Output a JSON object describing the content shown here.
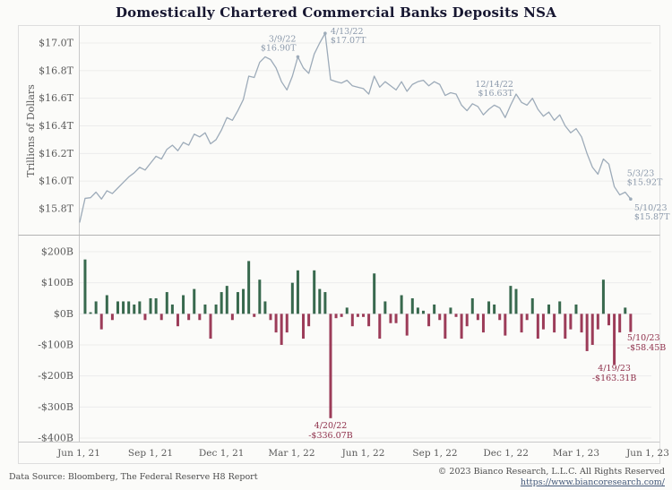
{
  "title": "Domestically Chartered Commercial Banks Deposits NSA",
  "footer": {
    "source": "Data Source: Bloomberg, The Federal Reserve H8 Report",
    "copyright": "© 2023 Bianco Research, L.L.C. All Rights Reserved",
    "url": "https://www.biancoresearch.com/"
  },
  "colors": {
    "line": "#9dabb9",
    "positive_bar": "#38694e",
    "negative_bar": "#9c3c59",
    "annotation_blue": "#8b99ab",
    "annotation_red": "#8e2f4a",
    "grid": "#ececec",
    "spine": "#c9c9c9",
    "divider": "#b3b3b3",
    "border": "#dedede",
    "tick_text": "#5a5a5a",
    "title_text": "#161630",
    "link": "#44597a"
  },
  "xaxis": {
    "ticks": [
      {
        "label": "Jun 1, 21",
        "date": "2021-06-01"
      },
      {
        "label": "Sep 1, 21",
        "date": "2021-09-01"
      },
      {
        "label": "Dec 1, 21",
        "date": "2021-12-01"
      },
      {
        "label": "Mar 1, 22",
        "date": "2022-03-01"
      },
      {
        "label": "Jun 1, 22",
        "date": "2022-06-01"
      },
      {
        "label": "Sep 1, 22",
        "date": "2022-09-01"
      },
      {
        "label": "Dec 1, 22",
        "date": "2022-12-01"
      },
      {
        "label": "Mar 1, 23",
        "date": "2023-03-01"
      },
      {
        "label": "Jun 1, 23",
        "date": "2023-06-01"
      }
    ],
    "range": [
      "2021-06-01",
      "2023-06-01"
    ]
  },
  "chart_data": [
    {
      "type": "line",
      "title": "Deposits level",
      "ylabel": "Trillions of Dollars",
      "ylim": [
        15.7,
        17.12
      ],
      "yticks": [
        {
          "label": "$17.0T",
          "v": 17.0
        },
        {
          "label": "$16.8T",
          "v": 16.8
        },
        {
          "label": "$16.6T",
          "v": 16.6
        },
        {
          "label": "$16.4T",
          "v": 16.4
        },
        {
          "label": "$16.2T",
          "v": 16.2
        },
        {
          "label": "$16.0T",
          "v": 16.0
        },
        {
          "label": "$15.8T",
          "v": 15.8
        }
      ],
      "x": [
        "2021-06-02",
        "2021-06-09",
        "2021-06-16",
        "2021-06-23",
        "2021-06-30",
        "2021-07-07",
        "2021-07-14",
        "2021-07-21",
        "2021-07-28",
        "2021-08-04",
        "2021-08-11",
        "2021-08-18",
        "2021-08-25",
        "2021-09-01",
        "2021-09-08",
        "2021-09-15",
        "2021-09-22",
        "2021-09-29",
        "2021-10-06",
        "2021-10-13",
        "2021-10-20",
        "2021-10-27",
        "2021-11-03",
        "2021-11-10",
        "2021-11-17",
        "2021-11-24",
        "2021-12-01",
        "2021-12-08",
        "2021-12-15",
        "2021-12-22",
        "2021-12-29",
        "2022-01-05",
        "2022-01-12",
        "2022-01-19",
        "2022-01-26",
        "2022-02-02",
        "2022-02-09",
        "2022-02-16",
        "2022-02-23",
        "2022-03-02",
        "2022-03-09",
        "2022-03-16",
        "2022-03-23",
        "2022-03-30",
        "2022-04-06",
        "2022-04-13",
        "2022-04-20",
        "2022-04-27",
        "2022-05-04",
        "2022-05-11",
        "2022-05-18",
        "2022-05-25",
        "2022-06-01",
        "2022-06-08",
        "2022-06-15",
        "2022-06-22",
        "2022-06-29",
        "2022-07-06",
        "2022-07-13",
        "2022-07-20",
        "2022-07-27",
        "2022-08-03",
        "2022-08-10",
        "2022-08-17",
        "2022-08-24",
        "2022-08-31",
        "2022-09-07",
        "2022-09-14",
        "2022-09-21",
        "2022-09-28",
        "2022-10-05",
        "2022-10-12",
        "2022-10-19",
        "2022-10-26",
        "2022-11-02",
        "2022-11-09",
        "2022-11-16",
        "2022-11-23",
        "2022-11-30",
        "2022-12-07",
        "2022-12-14",
        "2022-12-21",
        "2022-12-28",
        "2023-01-04",
        "2023-01-11",
        "2023-01-18",
        "2023-01-25",
        "2023-02-01",
        "2023-02-08",
        "2023-02-15",
        "2023-02-22",
        "2023-03-01",
        "2023-03-08",
        "2023-03-15",
        "2023-03-22",
        "2023-03-29",
        "2023-04-05",
        "2023-04-12",
        "2023-04-19",
        "2023-04-26",
        "2023-05-03",
        "2023-05-10"
      ],
      "values": [
        15.7,
        15.875,
        15.88,
        15.92,
        15.87,
        15.93,
        15.91,
        15.95,
        15.99,
        16.03,
        16.06,
        16.1,
        16.08,
        16.13,
        16.18,
        16.16,
        16.23,
        16.26,
        16.22,
        16.28,
        16.26,
        16.34,
        16.32,
        16.35,
        16.27,
        16.3,
        16.37,
        16.46,
        16.44,
        16.51,
        16.59,
        16.76,
        16.75,
        16.86,
        16.9,
        16.88,
        16.82,
        16.72,
        16.66,
        16.76,
        16.9,
        16.82,
        16.78,
        16.92,
        17.0,
        17.07,
        16.734,
        16.72,
        16.71,
        16.73,
        16.69,
        16.68,
        16.67,
        16.63,
        16.76,
        16.68,
        16.72,
        16.69,
        16.66,
        16.72,
        16.65,
        16.7,
        16.72,
        16.73,
        16.69,
        16.72,
        16.7,
        16.62,
        16.64,
        16.63,
        16.55,
        16.51,
        16.56,
        16.54,
        16.48,
        16.52,
        16.55,
        16.53,
        16.46,
        16.55,
        16.63,
        16.57,
        16.55,
        16.6,
        16.52,
        16.47,
        16.5,
        16.44,
        16.48,
        16.4,
        16.35,
        16.38,
        16.32,
        16.2,
        16.1,
        16.05,
        16.16,
        16.123,
        15.96,
        15.9,
        15.92,
        15.87
      ],
      "annotations": [
        {
          "date": "2022-03-09",
          "value": 16.9,
          "lines": [
            "3/9/22",
            "$16.90T"
          ]
        },
        {
          "date": "2022-04-13",
          "value": 17.07,
          "lines": [
            "4/13/22",
            "$17.07T"
          ]
        },
        {
          "date": "2022-12-14",
          "value": 16.63,
          "lines": [
            "12/14/22",
            "$16.63T"
          ]
        },
        {
          "date": "2023-05-03",
          "value": 15.92,
          "lines": [
            "5/3/23",
            "$15.92T"
          ]
        },
        {
          "date": "2023-05-10",
          "value": 15.87,
          "lines": [
            "5/10/23",
            "$15.87T"
          ]
        }
      ]
    },
    {
      "type": "bar",
      "title": "Weekly change",
      "ylabel": "",
      "ylim": [
        -400,
        200
      ],
      "yticks": [
        {
          "label": "$200B",
          "v": 200
        },
        {
          "label": "$100B",
          "v": 100
        },
        {
          "label": "$0B",
          "v": 0
        },
        {
          "label": "-$100B",
          "v": -100
        },
        {
          "label": "-$200B",
          "v": -200
        },
        {
          "label": "-$300B",
          "v": -300
        },
        {
          "label": "-$400B",
          "v": -400
        }
      ],
      "x": [
        "2021-06-09",
        "2021-06-16",
        "2021-06-23",
        "2021-06-30",
        "2021-07-07",
        "2021-07-14",
        "2021-07-21",
        "2021-07-28",
        "2021-08-04",
        "2021-08-11",
        "2021-08-18",
        "2021-08-25",
        "2021-09-01",
        "2021-09-08",
        "2021-09-15",
        "2021-09-22",
        "2021-09-29",
        "2021-10-06",
        "2021-10-13",
        "2021-10-20",
        "2021-10-27",
        "2021-11-03",
        "2021-11-10",
        "2021-11-17",
        "2021-11-24",
        "2021-12-01",
        "2021-12-08",
        "2021-12-15",
        "2021-12-22",
        "2021-12-29",
        "2022-01-05",
        "2022-01-12",
        "2022-01-19",
        "2022-01-26",
        "2022-02-02",
        "2022-02-09",
        "2022-02-16",
        "2022-02-23",
        "2022-03-02",
        "2022-03-09",
        "2022-03-16",
        "2022-03-23",
        "2022-03-30",
        "2022-04-06",
        "2022-04-13",
        "2022-04-20",
        "2022-04-27",
        "2022-05-04",
        "2022-05-11",
        "2022-05-18",
        "2022-05-25",
        "2022-06-01",
        "2022-06-08",
        "2022-06-15",
        "2022-06-22",
        "2022-06-29",
        "2022-07-06",
        "2022-07-13",
        "2022-07-20",
        "2022-07-27",
        "2022-08-03",
        "2022-08-10",
        "2022-08-17",
        "2022-08-24",
        "2022-08-31",
        "2022-09-07",
        "2022-09-14",
        "2022-09-21",
        "2022-09-28",
        "2022-10-05",
        "2022-10-12",
        "2022-10-19",
        "2022-10-26",
        "2022-11-02",
        "2022-11-09",
        "2022-11-16",
        "2022-11-23",
        "2022-11-30",
        "2022-12-07",
        "2022-12-14",
        "2022-12-21",
        "2022-12-28",
        "2023-01-04",
        "2023-01-11",
        "2023-01-18",
        "2023-01-25",
        "2023-02-01",
        "2023-02-08",
        "2023-02-15",
        "2023-02-22",
        "2023-03-01",
        "2023-03-08",
        "2023-03-15",
        "2023-03-22",
        "2023-03-29",
        "2023-04-05",
        "2023-04-12",
        "2023-04-19",
        "2023-04-26",
        "2023-05-03",
        "2023-05-10"
      ],
      "values": [
        175,
        5,
        40,
        -50,
        60,
        -20,
        40,
        40,
        40,
        30,
        40,
        -20,
        50,
        50,
        -20,
        70,
        30,
        -40,
        60,
        -20,
        80,
        -20,
        30,
        -80,
        30,
        70,
        90,
        -20,
        70,
        80,
        170,
        -10,
        110,
        40,
        -20,
        -60,
        -100,
        -60,
        100,
        140,
        -80,
        -40,
        140,
        80,
        70,
        -336.07,
        -14,
        -10,
        20,
        -40,
        -10,
        -10,
        -40,
        130,
        -80,
        40,
        -30,
        -30,
        60,
        -70,
        50,
        20,
        10,
        -40,
        30,
        -20,
        -80,
        20,
        -10,
        -80,
        -40,
        50,
        -20,
        -60,
        40,
        30,
        -20,
        -70,
        90,
        80,
        -60,
        -20,
        50,
        -80,
        -50,
        30,
        -60,
        40,
        -80,
        -50,
        30,
        -60,
        -120,
        -100,
        -50,
        110,
        -37,
        -163.31,
        -60,
        20,
        -58.45
      ],
      "annotations": [
        {
          "date": "2022-04-20",
          "value": -336.07,
          "lines": [
            "4/20/22",
            "-$336.07B"
          ]
        },
        {
          "date": "2023-04-19",
          "value": -163.31,
          "lines": [
            "4/19/23",
            "-$163.31B"
          ]
        },
        {
          "date": "2023-05-10",
          "value": -58.45,
          "lines": [
            "5/10/23",
            "-$58.45B"
          ]
        }
      ]
    }
  ]
}
